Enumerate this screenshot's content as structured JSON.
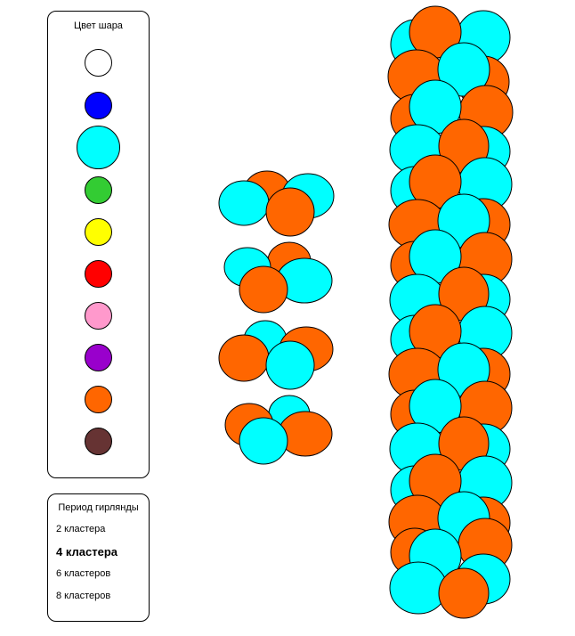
{
  "color_panel": {
    "title": "Цвет шара",
    "swatches": [
      {
        "name": "white",
        "color": "#ffffff"
      },
      {
        "name": "blue",
        "color": "#0000ff"
      },
      {
        "name": "cyan",
        "color": "#00ffff"
      },
      {
        "name": "green",
        "color": "#33cc33"
      },
      {
        "name": "yellow",
        "color": "#ffff00"
      },
      {
        "name": "red",
        "color": "#ff0000"
      },
      {
        "name": "pink",
        "color": "#ff99cc"
      },
      {
        "name": "purple",
        "color": "#9900cc"
      },
      {
        "name": "orange",
        "color": "#ff6600"
      },
      {
        "name": "brown",
        "color": "#663333"
      }
    ],
    "selected_swatch": "cyan"
  },
  "period_panel": {
    "title": "Период гирлянды",
    "options": [
      {
        "label": "2 кластера"
      },
      {
        "label": "4 кластера"
      },
      {
        "label": "6 кластеров"
      },
      {
        "label": "8 кластеров"
      }
    ],
    "selected_option": "4 кластера"
  },
  "colors": {
    "orange": "#ff6600",
    "cyan": "#00ffff",
    "outline": "#000000"
  }
}
